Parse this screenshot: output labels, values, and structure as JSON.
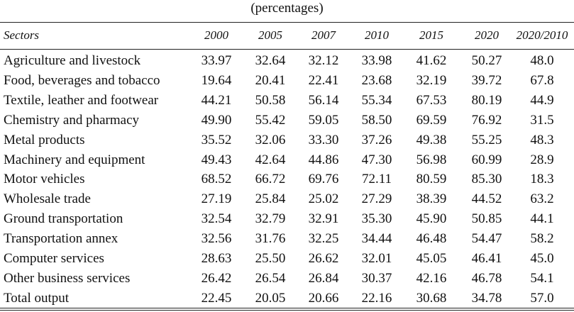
{
  "subtitle": "(percentages)",
  "table": {
    "header": [
      "Sectors",
      "2000",
      "2005",
      "2007",
      "2010",
      "2015",
      "2020",
      "2020/2010"
    ],
    "rows": [
      [
        "Agriculture and livestock",
        "33.97",
        "32.64",
        "32.12",
        "33.98",
        "41.62",
        "50.27",
        "48.0"
      ],
      [
        "Food, beverages and tobacco",
        "19.64",
        "20.41",
        "22.41",
        "23.68",
        "32.19",
        "39.72",
        "67.8"
      ],
      [
        "Textile, leather and footwear",
        "44.21",
        "50.58",
        "56.14",
        "55.34",
        "67.53",
        "80.19",
        "44.9"
      ],
      [
        "Chemistry and pharmacy",
        "49.90",
        "55.42",
        "59.05",
        "58.50",
        "69.59",
        "76.92",
        "31.5"
      ],
      [
        "Metal products",
        "35.52",
        "32.06",
        "33.30",
        "37.26",
        "49.38",
        "55.25",
        "48.3"
      ],
      [
        "Machinery and equipment",
        "49.43",
        "42.64",
        "44.86",
        "47.30",
        "56.98",
        "60.99",
        "28.9"
      ],
      [
        "Motor vehicles",
        "68.52",
        "66.72",
        "69.76",
        "72.11",
        "80.59",
        "85.30",
        "18.3"
      ],
      [
        "Wholesale trade",
        "27.19",
        "25.84",
        "25.02",
        "27.29",
        "38.39",
        "44.52",
        "63.2"
      ],
      [
        "Ground transportation",
        "32.54",
        "32.79",
        "32.91",
        "35.30",
        "45.90",
        "50.85",
        "44.1"
      ],
      [
        "Transportation annex",
        "32.56",
        "31.76",
        "32.25",
        "34.44",
        "46.48",
        "54.47",
        "58.2"
      ],
      [
        "Computer services",
        "28.63",
        "25.50",
        "26.62",
        "32.01",
        "45.05",
        "46.41",
        "45.0"
      ],
      [
        "Other business services",
        "26.42",
        "26.54",
        "26.84",
        "30.37",
        "42.16",
        "46.78",
        "54.1"
      ],
      [
        "Total output",
        "22.45",
        "20.05",
        "20.66",
        "22.16",
        "30.68",
        "34.78",
        "57.0"
      ]
    ]
  }
}
